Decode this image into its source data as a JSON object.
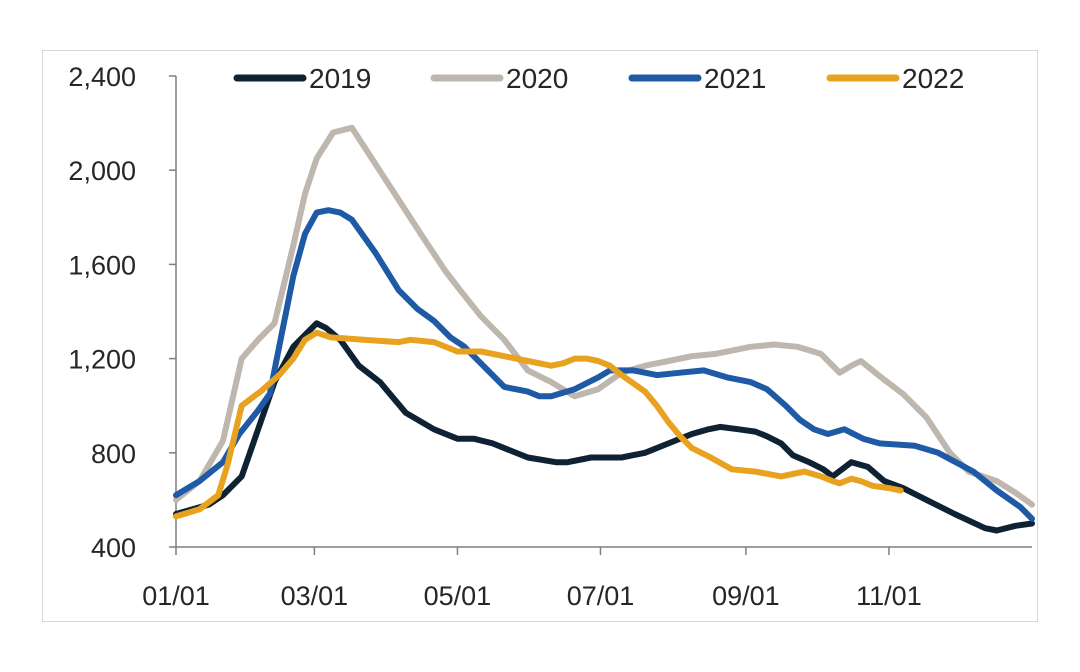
{
  "chart_data": {
    "type": "line",
    "title": "",
    "xlabel": "",
    "ylabel": "",
    "x_domain_days": [
      0,
      365
    ],
    "x_ticks": [
      {
        "label": "01/01",
        "day": 0
      },
      {
        "label": "03/01",
        "day": 59
      },
      {
        "label": "05/01",
        "day": 120
      },
      {
        "label": "07/01",
        "day": 181
      },
      {
        "label": "09/01",
        "day": 243
      },
      {
        "label": "11/01",
        "day": 304
      }
    ],
    "ylim": [
      400,
      2400
    ],
    "y_ticks": [
      {
        "label": "400",
        "value": 400
      },
      {
        "label": "800",
        "value": 800
      },
      {
        "label": "1,200",
        "value": 1200
      },
      {
        "label": "1,600",
        "value": 1600
      },
      {
        "label": "2,000",
        "value": 2000
      },
      {
        "label": "2,400",
        "value": 2400
      }
    ],
    "grid": false,
    "legend_position": "top",
    "series": [
      {
        "name": "2019",
        "color": "#0f2233",
        "points": [
          [
            0,
            540
          ],
          [
            14,
            580
          ],
          [
            20,
            620
          ],
          [
            28,
            700
          ],
          [
            35,
            900
          ],
          [
            42,
            1100
          ],
          [
            50,
            1250
          ],
          [
            57,
            1320
          ],
          [
            60,
            1350
          ],
          [
            64,
            1330
          ],
          [
            70,
            1280
          ],
          [
            78,
            1170
          ],
          [
            87,
            1100
          ],
          [
            98,
            970
          ],
          [
            110,
            900
          ],
          [
            120,
            860
          ],
          [
            127,
            860
          ],
          [
            135,
            840
          ],
          [
            150,
            780
          ],
          [
            162,
            760
          ],
          [
            167,
            760
          ],
          [
            177,
            780
          ],
          [
            190,
            780
          ],
          [
            200,
            800
          ],
          [
            210,
            840
          ],
          [
            220,
            880
          ],
          [
            227,
            900
          ],
          [
            232,
            910
          ],
          [
            240,
            900
          ],
          [
            247,
            890
          ],
          [
            252,
            870
          ],
          [
            258,
            840
          ],
          [
            263,
            790
          ],
          [
            270,
            760
          ],
          [
            276,
            730
          ],
          [
            280,
            700
          ],
          [
            288,
            760
          ],
          [
            295,
            740
          ],
          [
            302,
            680
          ],
          [
            310,
            650
          ],
          [
            320,
            600
          ],
          [
            332,
            540
          ],
          [
            345,
            480
          ],
          [
            350,
            470
          ],
          [
            358,
            490
          ],
          [
            365,
            500
          ]
        ]
      },
      {
        "name": "2020",
        "color": "#bfb6ad",
        "points": [
          [
            0,
            600
          ],
          [
            10,
            680
          ],
          [
            20,
            850
          ],
          [
            28,
            1200
          ],
          [
            35,
            1280
          ],
          [
            42,
            1350
          ],
          [
            50,
            1680
          ],
          [
            55,
            1900
          ],
          [
            60,
            2050
          ],
          [
            67,
            2160
          ],
          [
            75,
            2180
          ],
          [
            90,
            1950
          ],
          [
            105,
            1720
          ],
          [
            115,
            1570
          ],
          [
            122,
            1480
          ],
          [
            130,
            1380
          ],
          [
            140,
            1280
          ],
          [
            150,
            1150
          ],
          [
            160,
            1100
          ],
          [
            170,
            1040
          ],
          [
            180,
            1070
          ],
          [
            190,
            1140
          ],
          [
            200,
            1170
          ],
          [
            210,
            1190
          ],
          [
            220,
            1210
          ],
          [
            230,
            1220
          ],
          [
            240,
            1240
          ],
          [
            245,
            1250
          ],
          [
            255,
            1260
          ],
          [
            265,
            1250
          ],
          [
            275,
            1220
          ],
          [
            283,
            1140
          ],
          [
            288,
            1170
          ],
          [
            292,
            1190
          ],
          [
            297,
            1150
          ],
          [
            302,
            1110
          ],
          [
            310,
            1050
          ],
          [
            320,
            950
          ],
          [
            330,
            800
          ],
          [
            338,
            720
          ],
          [
            350,
            680
          ],
          [
            358,
            630
          ],
          [
            365,
            580
          ]
        ]
      },
      {
        "name": "2021",
        "color": "#1f5aa6",
        "points": [
          [
            0,
            620
          ],
          [
            10,
            680
          ],
          [
            20,
            760
          ],
          [
            27,
            880
          ],
          [
            35,
            980
          ],
          [
            40,
            1050
          ],
          [
            45,
            1300
          ],
          [
            50,
            1550
          ],
          [
            55,
            1730
          ],
          [
            60,
            1820
          ],
          [
            65,
            1830
          ],
          [
            70,
            1820
          ],
          [
            75,
            1790
          ],
          [
            85,
            1650
          ],
          [
            95,
            1490
          ],
          [
            103,
            1410
          ],
          [
            110,
            1360
          ],
          [
            117,
            1290
          ],
          [
            123,
            1250
          ],
          [
            128,
            1200
          ],
          [
            133,
            1150
          ],
          [
            140,
            1080
          ],
          [
            150,
            1060
          ],
          [
            155,
            1040
          ],
          [
            160,
            1040
          ],
          [
            170,
            1070
          ],
          [
            180,
            1120
          ],
          [
            185,
            1150
          ],
          [
            195,
            1150
          ],
          [
            205,
            1130
          ],
          [
            215,
            1140
          ],
          [
            225,
            1150
          ],
          [
            235,
            1120
          ],
          [
            245,
            1100
          ],
          [
            252,
            1070
          ],
          [
            260,
            1000
          ],
          [
            266,
            940
          ],
          [
            272,
            900
          ],
          [
            278,
            880
          ],
          [
            285,
            900
          ],
          [
            293,
            860
          ],
          [
            300,
            840
          ],
          [
            315,
            830
          ],
          [
            325,
            800
          ],
          [
            340,
            720
          ],
          [
            350,
            640
          ],
          [
            360,
            570
          ],
          [
            365,
            520
          ]
        ]
      },
      {
        "name": "2022",
        "color": "#e8a21f",
        "points": [
          [
            0,
            530
          ],
          [
            10,
            560
          ],
          [
            18,
            620
          ],
          [
            22,
            750
          ],
          [
            28,
            1000
          ],
          [
            36,
            1060
          ],
          [
            44,
            1130
          ],
          [
            50,
            1200
          ],
          [
            55,
            1280
          ],
          [
            60,
            1310
          ],
          [
            66,
            1290
          ],
          [
            80,
            1280
          ],
          [
            95,
            1270
          ],
          [
            100,
            1280
          ],
          [
            110,
            1270
          ],
          [
            120,
            1230
          ],
          [
            130,
            1230
          ],
          [
            140,
            1210
          ],
          [
            150,
            1190
          ],
          [
            160,
            1170
          ],
          [
            165,
            1180
          ],
          [
            170,
            1200
          ],
          [
            175,
            1200
          ],
          [
            180,
            1190
          ],
          [
            185,
            1170
          ],
          [
            190,
            1130
          ],
          [
            200,
            1060
          ],
          [
            205,
            1000
          ],
          [
            210,
            930
          ],
          [
            215,
            870
          ],
          [
            220,
            820
          ],
          [
            228,
            780
          ],
          [
            237,
            730
          ],
          [
            247,
            720
          ],
          [
            258,
            700
          ],
          [
            263,
            710
          ],
          [
            268,
            720
          ],
          [
            275,
            700
          ],
          [
            280,
            680
          ],
          [
            283,
            670
          ],
          [
            288,
            690
          ],
          [
            292,
            680
          ],
          [
            297,
            660
          ],
          [
            304,
            650
          ],
          [
            309,
            640
          ]
        ]
      }
    ]
  }
}
